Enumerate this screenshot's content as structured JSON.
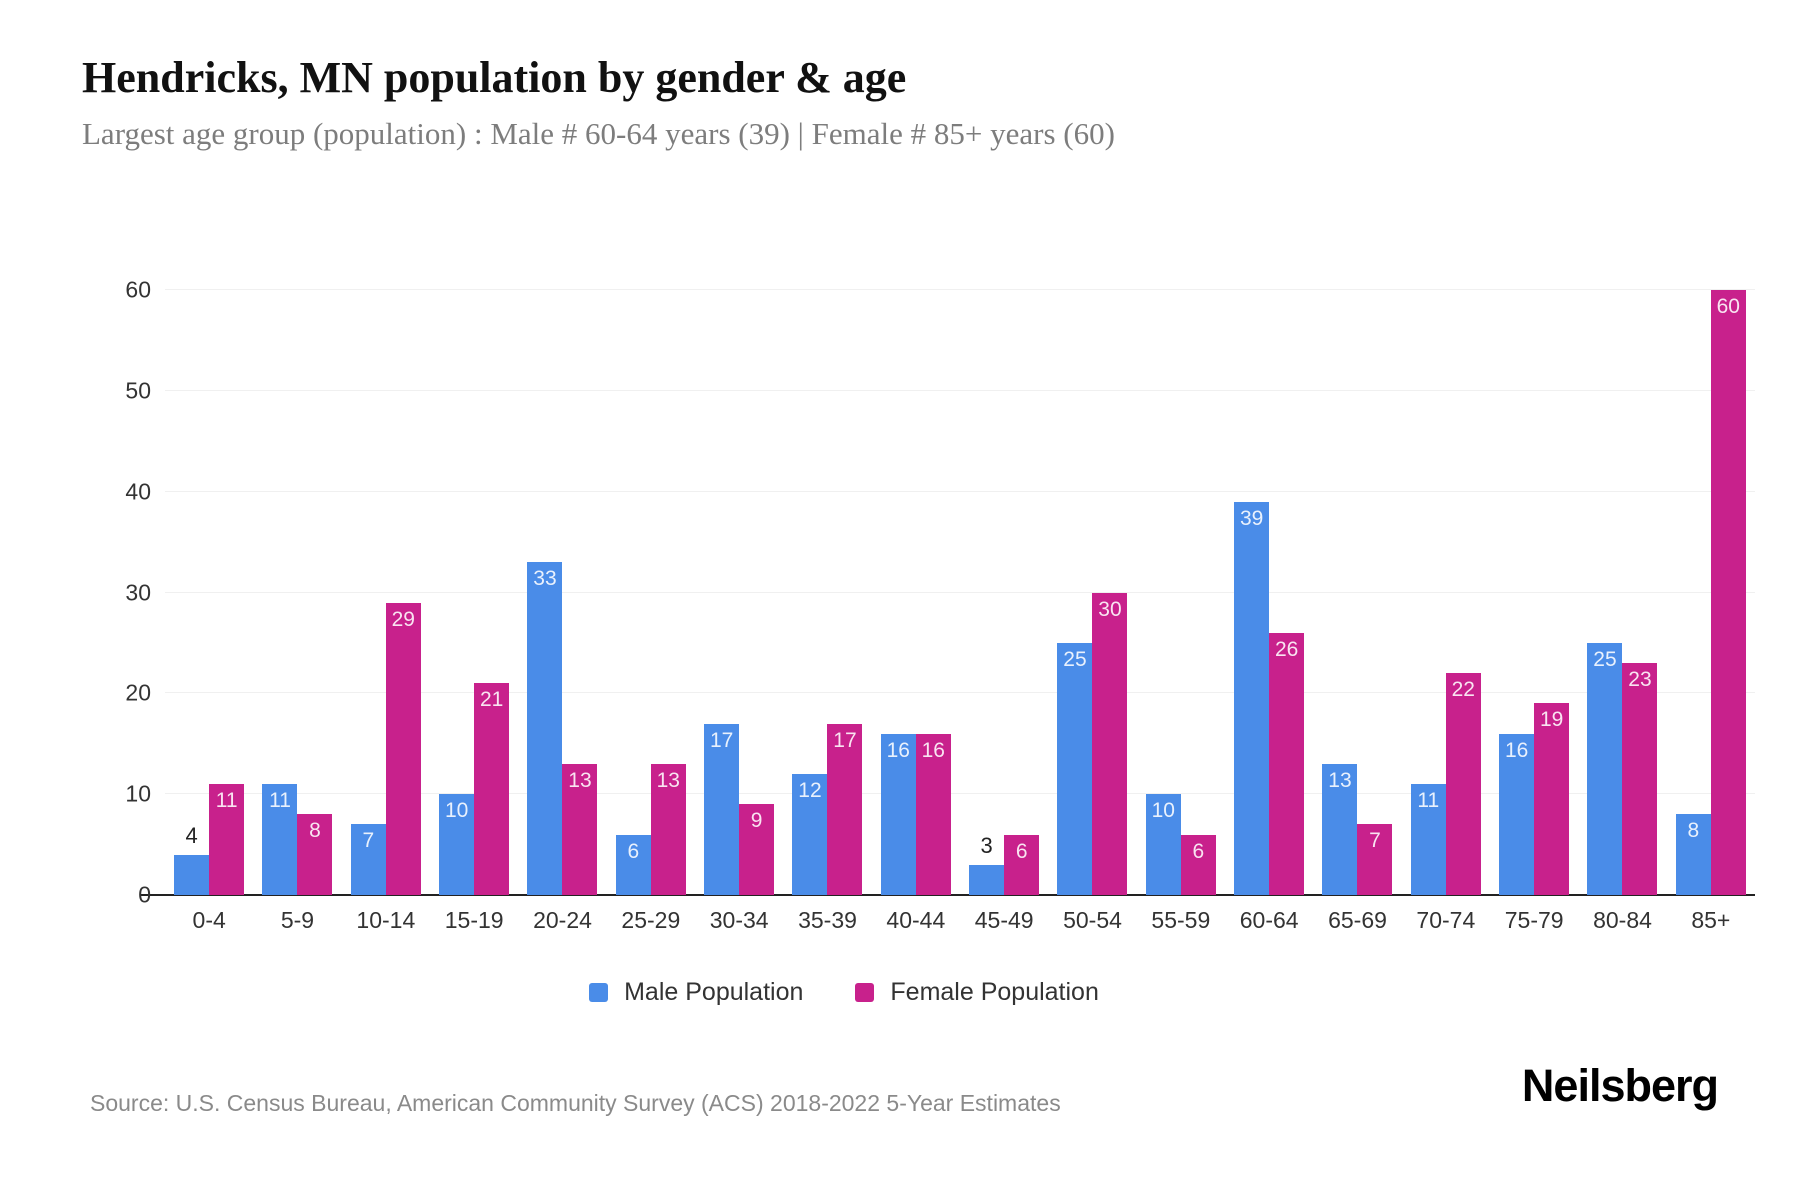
{
  "header": {
    "title": "Hendricks, MN population by gender & age",
    "subtitle": "Largest age group (population) : Male # 60-64 years (39) | Female # 85+ years (60)"
  },
  "axis": {
    "y_ticks": [
      0,
      10,
      20,
      30,
      40,
      50,
      60
    ]
  },
  "chart_data": {
    "type": "bar",
    "title": "Hendricks, MN population by gender & age",
    "categories": [
      "0-4",
      "5-9",
      "10-14",
      "15-19",
      "20-24",
      "25-29",
      "30-34",
      "35-39",
      "40-44",
      "45-49",
      "50-54",
      "55-59",
      "60-64",
      "65-69",
      "70-74",
      "75-79",
      "80-84",
      "85+"
    ],
    "series": [
      {
        "name": "Male Population",
        "color": "#4a8ce8",
        "values": [
          4,
          11,
          7,
          10,
          33,
          6,
          17,
          12,
          16,
          3,
          25,
          10,
          39,
          13,
          11,
          16,
          25,
          8
        ]
      },
      {
        "name": "Female Population",
        "color": "#c8218c",
        "values": [
          11,
          8,
          29,
          21,
          13,
          13,
          9,
          17,
          16,
          6,
          30,
          6,
          26,
          7,
          22,
          19,
          23,
          60
        ]
      }
    ],
    "xlabel": "",
    "ylabel": "",
    "ylim": [
      0,
      60
    ],
    "grid": "horizontal",
    "legend_position": "bottom",
    "bar_label_inside_min_value": 6
  },
  "legend": {
    "male": "Male Population",
    "female": "Female Population"
  },
  "footer": {
    "source": "Source: U.S. Census Bureau, American Community Survey (ACS) 2018-2022 5-Year Estimates",
    "brand": "Neilsberg"
  },
  "colors": {
    "male": "#4a8ce8",
    "female": "#c8218c",
    "gridline": "#f0f0f0",
    "axis_line": "#222222"
  }
}
